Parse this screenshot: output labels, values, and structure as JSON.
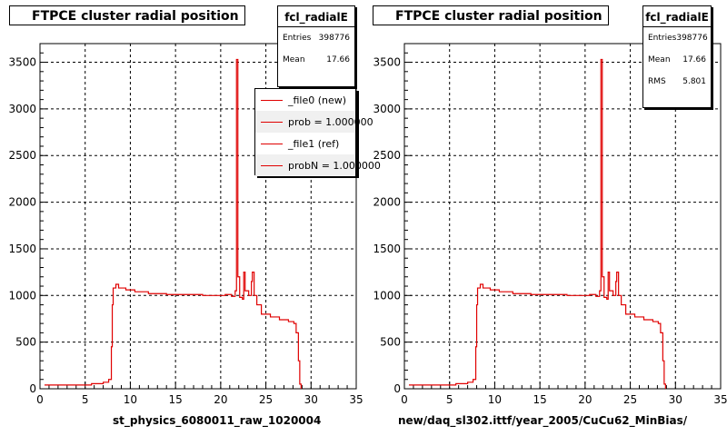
{
  "panels": [
    {
      "title": "FTPCE cluster radial position",
      "xtitle": "st_physics_6080011_raw_1020004",
      "stats": {
        "name": "fcl_radialE",
        "rows": [
          [
            "Entries",
            "398776"
          ],
          [
            "Mean",
            "17.66"
          ]
        ]
      },
      "legend": [
        "_file0 (new)",
        "prob = 1.000000",
        "_file1 (ref)",
        "probN = 1.000000"
      ]
    },
    {
      "title": "FTPCE cluster radial position",
      "xtitle": "new/daq_sl302.ittf/year_2005/CuCu62_MinBias/",
      "stats": {
        "name": "fcl_radialE",
        "rows": [
          [
            "Entries",
            "398776"
          ],
          [
            "Mean",
            "17.66"
          ],
          [
            "RMS",
            "5.801"
          ]
        ]
      },
      "legend": []
    }
  ],
  "chart_data": [
    {
      "type": "line",
      "title": "FTPCE cluster radial position",
      "xlabel": "st_physics_6080011_raw_1020004",
      "ylabel": "",
      "xlim": [
        0,
        35
      ],
      "ylim": [
        0,
        3700
      ],
      "xticks": [
        0,
        5,
        10,
        15,
        20,
        25,
        30,
        35
      ],
      "yticks": [
        0,
        500,
        1000,
        1500,
        2000,
        2500,
        3000,
        3500
      ],
      "grid": true,
      "color": "#e00000",
      "series": [
        {
          "name": "_file0 (new)",
          "x": [
            0.5,
            5.5,
            5.7,
            7.0,
            7.6,
            7.9,
            8.0,
            8.1,
            8.4,
            8.7,
            9.5,
            10.5,
            12.0,
            14.0,
            16.0,
            18.0,
            19.5,
            20.5,
            21.2,
            21.6,
            21.75,
            21.9,
            22.1,
            22.4,
            22.55,
            22.7,
            23.1,
            23.4,
            23.5,
            23.7,
            24.0,
            24.5,
            25.5,
            26.5,
            27.5,
            28.1,
            28.35,
            28.6,
            28.75,
            28.9
          ],
          "y": [
            40,
            40,
            55,
            70,
            100,
            450,
            900,
            1080,
            1120,
            1080,
            1060,
            1040,
            1020,
            1010,
            1010,
            1000,
            1000,
            1010,
            990,
            1050,
            3530,
            1200,
            980,
            960,
            1250,
            1050,
            1000,
            1150,
            1250,
            1000,
            900,
            800,
            770,
            740,
            720,
            700,
            600,
            300,
            50,
            0
          ]
        },
        {
          "name": "_file1 (ref)",
          "x": [],
          "y": []
        }
      ]
    },
    {
      "type": "line",
      "title": "FTPCE cluster radial position",
      "xlabel": "new/daq_sl302.ittf/year_2005/CuCu62_MinBias/",
      "ylabel": "",
      "xlim": [
        0,
        35
      ],
      "ylim": [
        0,
        3700
      ],
      "xticks": [
        0,
        5,
        10,
        15,
        20,
        25,
        30,
        35
      ],
      "yticks": [
        0,
        500,
        1000,
        1500,
        2000,
        2500,
        3000,
        3500
      ],
      "grid": true,
      "color": "#e00000",
      "series": [
        {
          "name": "",
          "x": [
            0.5,
            5.5,
            5.7,
            7.0,
            7.6,
            7.9,
            8.0,
            8.1,
            8.4,
            8.7,
            9.5,
            10.5,
            12.0,
            14.0,
            16.0,
            18.0,
            19.5,
            20.5,
            21.2,
            21.6,
            21.75,
            21.9,
            22.1,
            22.4,
            22.55,
            22.7,
            23.1,
            23.4,
            23.5,
            23.7,
            24.0,
            24.5,
            25.5,
            26.5,
            27.5,
            28.1,
            28.35,
            28.6,
            28.75,
            28.9
          ],
          "y": [
            40,
            40,
            55,
            70,
            100,
            450,
            900,
            1080,
            1120,
            1080,
            1060,
            1040,
            1020,
            1010,
            1010,
            1000,
            1000,
            1010,
            990,
            1050,
            3530,
            1200,
            980,
            960,
            1250,
            1050,
            1000,
            1150,
            1250,
            1000,
            900,
            800,
            770,
            740,
            720,
            700,
            600,
            300,
            50,
            0
          ]
        }
      ]
    }
  ]
}
